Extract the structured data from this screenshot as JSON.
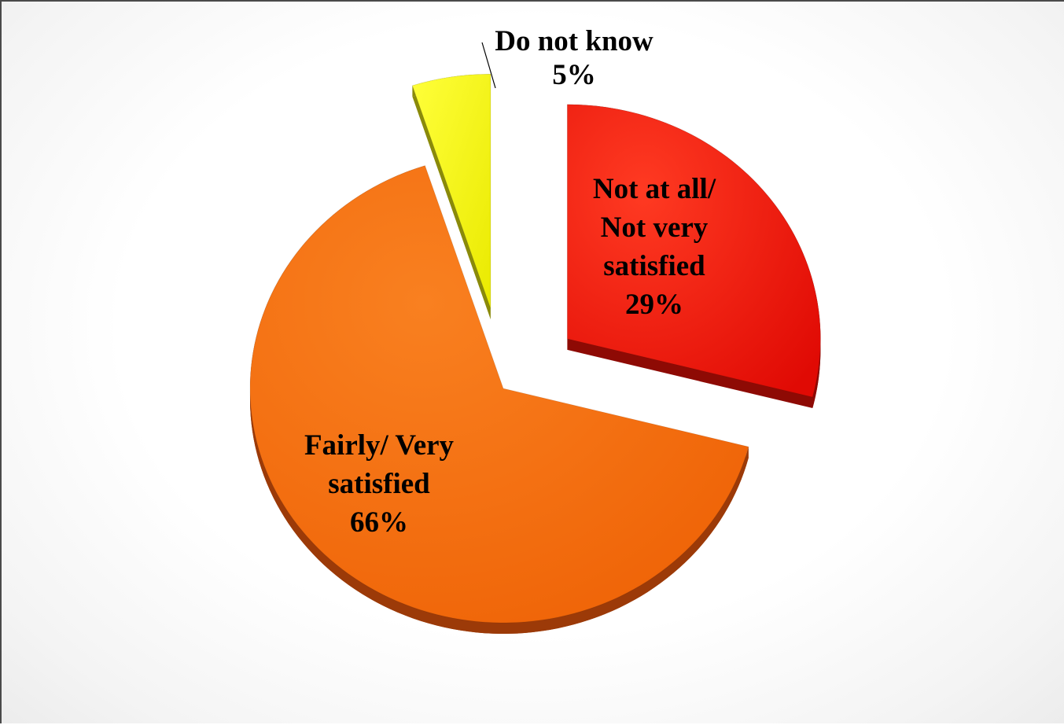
{
  "chart_data": {
    "type": "pie",
    "title": "",
    "slices": [
      {
        "label_lines": [
          "Not at all/",
          "Not very",
          "satisfied"
        ],
        "percent_label": "29%",
        "value": 29,
        "color": "#ee1a0a",
        "side_color": "#8e0a04"
      },
      {
        "label_lines": [
          "Fairly/ Very",
          "satisfied"
        ],
        "percent_label": "66%",
        "value": 66,
        "color": "#f46a12",
        "side_color": "#9c3a08"
      },
      {
        "label_lines": [
          "Do not know"
        ],
        "percent_label": "5%",
        "value": 5,
        "color": "#f7f712",
        "side_color": "#8a8a0a"
      }
    ],
    "exploded": true,
    "legend": "none",
    "three_d": true
  }
}
